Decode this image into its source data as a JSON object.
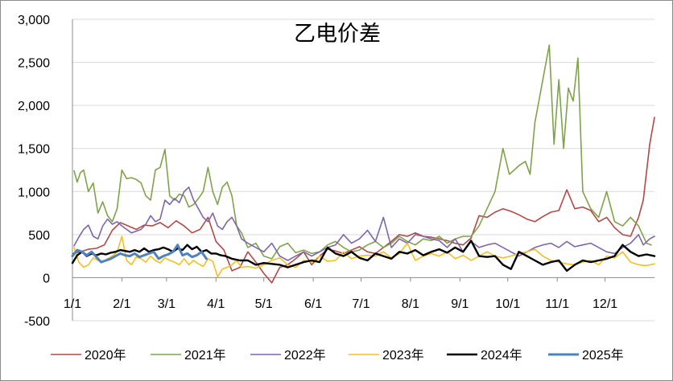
{
  "chart_data": {
    "type": "line",
    "title": "乙电价差",
    "xlabel": "",
    "ylabel": "",
    "ylim": [
      -500,
      3000
    ],
    "yticks": [
      -500,
      0,
      500,
      1000,
      1500,
      2000,
      2500,
      3000
    ],
    "ytick_labels": [
      "-500",
      "0",
      "500",
      "1,000",
      "1,500",
      "2,000",
      "2,500",
      "3,000"
    ],
    "x_domain_days": [
      0,
      365
    ],
    "xticks": [
      0,
      31,
      59,
      90,
      120,
      151,
      181,
      212,
      243,
      273,
      304,
      334
    ],
    "xtick_labels": [
      "1/1",
      "2/1",
      "3/1",
      "4/1",
      "5/1",
      "6/1",
      "7/1",
      "8/1",
      "9/1",
      "10/1",
      "11/1",
      "12/1"
    ],
    "grid": "horizontal",
    "legend_position": "bottom",
    "series": [
      {
        "name": "2020年",
        "color": "#b14a47",
        "width": 1.6,
        "x": [
          0,
          5,
          10,
          15,
          20,
          25,
          30,
          35,
          40,
          45,
          50,
          55,
          60,
          65,
          70,
          75,
          80,
          85,
          90,
          95,
          100,
          105,
          110,
          115,
          120,
          125,
          130,
          135,
          140,
          145,
          150,
          155,
          160,
          165,
          170,
          175,
          180,
          185,
          190,
          195,
          200,
          205,
          210,
          215,
          220,
          225,
          230,
          235,
          240,
          245,
          250,
          255,
          260,
          265,
          270,
          275,
          280,
          285,
          290,
          295,
          300,
          305,
          310,
          315,
          320,
          325,
          330,
          335,
          340,
          345,
          350,
          355,
          358,
          362,
          365
        ],
        "y": [
          280,
          300,
          330,
          340,
          380,
          550,
          640,
          600,
          560,
          610,
          600,
          640,
          580,
          660,
          600,
          520,
          560,
          700,
          420,
          320,
          80,
          120,
          300,
          180,
          50,
          -60,
          120,
          150,
          220,
          300,
          150,
          250,
          330,
          310,
          280,
          320,
          360,
          300,
          280,
          350,
          420,
          500,
          480,
          520,
          480,
          470,
          450,
          430,
          400,
          380,
          460,
          720,
          700,
          760,
          800,
          770,
          730,
          680,
          650,
          710,
          760,
          780,
          1020,
          800,
          820,
          780,
          650,
          700,
          580,
          500,
          480,
          700,
          900,
          1550,
          1860
        ]
      },
      {
        "name": "2021年",
        "color": "#7fa34a",
        "width": 1.6,
        "x": [
          1,
          3,
          5,
          7,
          10,
          13,
          16,
          19,
          22,
          25,
          28,
          31,
          34,
          37,
          40,
          43,
          46,
          49,
          52,
          55,
          58,
          61,
          64,
          67,
          70,
          73,
          76,
          79,
          82,
          85,
          88,
          91,
          94,
          97,
          100,
          103,
          106,
          110,
          115,
          120,
          125,
          130,
          135,
          140,
          145,
          150,
          155,
          160,
          165,
          170,
          175,
          180,
          185,
          190,
          195,
          200,
          205,
          210,
          215,
          220,
          225,
          230,
          235,
          240,
          245,
          250,
          255,
          260,
          265,
          270,
          274,
          277,
          280,
          284,
          287,
          290,
          293,
          296,
          299,
          302,
          305,
          308,
          311,
          314,
          317,
          320,
          325,
          330,
          335,
          340,
          345,
          350,
          355,
          360,
          363
        ],
        "y": [
          1240,
          1110,
          1220,
          1250,
          1000,
          1100,
          750,
          880,
          720,
          650,
          800,
          1250,
          1150,
          1160,
          1140,
          1100,
          950,
          900,
          1250,
          1280,
          1490,
          950,
          900,
          970,
          950,
          820,
          850,
          920,
          1000,
          1280,
          1000,
          850,
          1050,
          1110,
          950,
          600,
          520,
          350,
          400,
          250,
          220,
          360,
          400,
          290,
          320,
          280,
          300,
          380,
          420,
          350,
          300,
          320,
          380,
          420,
          350,
          400,
          480,
          420,
          380,
          450,
          430,
          480,
          400,
          450,
          480,
          480,
          600,
          800,
          1000,
          1500,
          1200,
          1250,
          1300,
          1350,
          1200,
          1800,
          2100,
          2400,
          2700,
          1550,
          2300,
          1500,
          2200,
          2050,
          2550,
          1000,
          800,
          700,
          1000,
          650,
          600,
          700,
          600,
          400,
          380
        ]
      },
      {
        "name": "2022年",
        "color": "#7d67a8",
        "width": 1.6,
        "x": [
          1,
          4,
          7,
          10,
          13,
          16,
          19,
          22,
          25,
          28,
          31,
          34,
          37,
          40,
          43,
          46,
          49,
          52,
          55,
          58,
          61,
          64,
          67,
          70,
          73,
          76,
          79,
          82,
          85,
          88,
          91,
          94,
          97,
          100,
          103,
          106,
          110,
          115,
          120,
          125,
          130,
          135,
          140,
          145,
          150,
          155,
          160,
          165,
          170,
          175,
          180,
          185,
          190,
          195,
          200,
          205,
          210,
          215,
          220,
          225,
          230,
          235,
          240,
          245,
          250,
          255,
          260,
          265,
          270,
          275,
          280,
          285,
          290,
          295,
          300,
          305,
          310,
          315,
          320,
          325,
          330,
          335,
          340,
          345,
          350,
          355,
          358,
          362,
          365
        ],
        "y": [
          370,
          470,
          560,
          610,
          480,
          450,
          600,
          680,
          620,
          650,
          600,
          560,
          520,
          540,
          560,
          620,
          720,
          650,
          680,
          900,
          850,
          920,
          870,
          1000,
          1050,
          900,
          800,
          700,
          650,
          750,
          600,
          560,
          650,
          700,
          600,
          450,
          400,
          350,
          300,
          400,
          250,
          200,
          250,
          300,
          250,
          300,
          350,
          380,
          500,
          400,
          450,
          550,
          420,
          700,
          350,
          450,
          400,
          500,
          480,
          450,
          430,
          350,
          450,
          300,
          420,
          350,
          380,
          400,
          350,
          300,
          250,
          300,
          350,
          380,
          400,
          350,
          420,
          360,
          380,
          400,
          350,
          300,
          280,
          350,
          400,
          500,
          380,
          450,
          480
        ]
      },
      {
        "name": "2023年",
        "color": "#f2c024",
        "width": 1.6,
        "x": [
          1,
          4,
          7,
          10,
          13,
          16,
          19,
          22,
          25,
          28,
          31,
          34,
          37,
          40,
          43,
          46,
          49,
          52,
          55,
          58,
          61,
          64,
          67,
          70,
          73,
          76,
          79,
          82,
          85,
          88,
          91,
          94,
          97,
          100,
          103,
          106,
          110,
          115,
          120,
          125,
          130,
          135,
          140,
          145,
          150,
          155,
          160,
          165,
          170,
          175,
          180,
          185,
          190,
          195,
          200,
          205,
          210,
          215,
          220,
          225,
          230,
          235,
          240,
          245,
          250,
          255,
          260,
          265,
          270,
          275,
          280,
          285,
          290,
          295,
          300,
          305,
          310,
          315,
          320,
          325,
          330,
          335,
          340,
          345,
          350,
          355,
          360,
          365
        ],
        "y": [
          350,
          180,
          120,
          150,
          230,
          200,
          180,
          220,
          250,
          300,
          480,
          200,
          150,
          240,
          220,
          180,
          250,
          200,
          170,
          230,
          200,
          180,
          150,
          220,
          150,
          200,
          160,
          130,
          220,
          190,
          10,
          100,
          120,
          150,
          200,
          120,
          130,
          110,
          150,
          200,
          230,
          150,
          120,
          200,
          180,
          250,
          190,
          200,
          300,
          220,
          250,
          260,
          250,
          300,
          230,
          280,
          400,
          200,
          250,
          280,
          250,
          300,
          220,
          260,
          200,
          250,
          300,
          250,
          230,
          250,
          280,
          300,
          330,
          250,
          200,
          180,
          160,
          150,
          180,
          200,
          150,
          250,
          230,
          300,
          180,
          150,
          140,
          160
        ]
      },
      {
        "name": "2024年",
        "color": "#000000",
        "width": 2.4,
        "x": [
          0,
          3,
          6,
          9,
          12,
          15,
          18,
          21,
          24,
          27,
          30,
          33,
          36,
          39,
          42,
          45,
          48,
          51,
          54,
          57,
          60,
          63,
          66,
          69,
          72,
          75,
          78,
          81,
          84,
          87,
          90,
          93,
          96,
          100,
          105,
          110,
          115,
          120,
          125,
          130,
          135,
          140,
          145,
          150,
          155,
          160,
          165,
          170,
          175,
          180,
          185,
          190,
          195,
          200,
          205,
          210,
          215,
          220,
          225,
          230,
          235,
          240,
          245,
          250,
          255,
          260,
          265,
          270,
          275,
          280,
          285,
          290,
          295,
          300,
          305,
          310,
          315,
          320,
          325,
          330,
          335,
          340,
          345,
          350,
          355,
          360,
          365
        ],
        "y": [
          170,
          260,
          300,
          250,
          280,
          260,
          280,
          270,
          290,
          300,
          320,
          310,
          300,
          320,
          300,
          340,
          300,
          320,
          330,
          350,
          330,
          300,
          340,
          320,
          380,
          330,
          360,
          300,
          320,
          280,
          280,
          260,
          250,
          220,
          200,
          200,
          150,
          170,
          160,
          150,
          120,
          150,
          180,
          200,
          180,
          350,
          280,
          250,
          300,
          230,
          200,
          280,
          250,
          220,
          300,
          280,
          320,
          260,
          300,
          330,
          290,
          350,
          300,
          430,
          250,
          240,
          250,
          150,
          100,
          300,
          250,
          200,
          150,
          180,
          200,
          80,
          150,
          200,
          180,
          200,
          220,
          250,
          380,
          300,
          250,
          270,
          250
        ]
      },
      {
        "name": "2025年",
        "color": "#4f81bd",
        "width": 3,
        "x": [
          0,
          3,
          6,
          9,
          12,
          15,
          18,
          21,
          24,
          27,
          30,
          33,
          36,
          39,
          42,
          45,
          48,
          51,
          54,
          57,
          60,
          63,
          66,
          69,
          72,
          75,
          78,
          81,
          84
        ],
        "y": [
          250,
          320,
          300,
          260,
          300,
          240,
          180,
          200,
          220,
          250,
          280,
          260,
          250,
          280,
          240,
          260,
          280,
          300,
          220,
          250,
          270,
          300,
          380,
          260,
          280,
          240,
          260,
          300,
          220
        ]
      }
    ]
  }
}
